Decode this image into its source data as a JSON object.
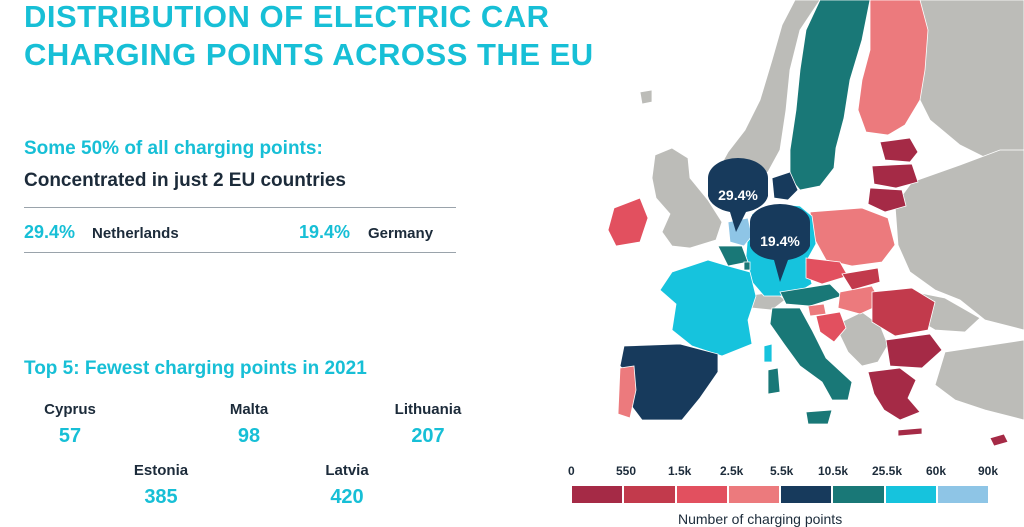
{
  "title_line1": "DISTRIBUTION OF ELECTRIC CAR",
  "title_line2": "CHARGING POINTS ACROSS THE EU",
  "highlight": {
    "subtitle": "Some 50% of all charging points:",
    "headline": "Concentrated in just 2 EU countries",
    "countries": [
      {
        "pct": "29.4%",
        "name": "Netherlands"
      },
      {
        "pct": "19.4%",
        "name": "Germany"
      }
    ]
  },
  "fewest": {
    "title": "Top 5: Fewest charging points in 2021",
    "items": [
      {
        "name": "Cyprus",
        "value": "57"
      },
      {
        "name": "Malta",
        "value": "98"
      },
      {
        "name": "Lithuania",
        "value": "207"
      },
      {
        "name": "Estonia",
        "value": "385"
      },
      {
        "name": "Latvia",
        "value": "420"
      }
    ]
  },
  "map": {
    "callouts": [
      {
        "country": "Netherlands",
        "label": "29.4%"
      },
      {
        "country": "Germany",
        "label": "19.4%"
      }
    ],
    "colors": {
      "non_eu": "#bcbcb8",
      "c0": "#a52a46",
      "c1": "#c23a4c",
      "c2": "#e2505f",
      "c3": "#ec7a7d",
      "c4": "#173a5c",
      "c5": "#197877",
      "c6": "#16c3dd",
      "c7": "#8ec5e6"
    }
  },
  "legend": {
    "ticks": [
      "0",
      "550",
      "1.5k",
      "2.5k",
      "5.5k",
      "10.5k",
      "25.5k",
      "60k",
      "90k"
    ],
    "colors": [
      "#a52a46",
      "#c23a4c",
      "#e2505f",
      "#ec7a7d",
      "#173a5c",
      "#197877",
      "#16c3dd",
      "#8ec5e6"
    ],
    "title": "Number of charging points"
  }
}
